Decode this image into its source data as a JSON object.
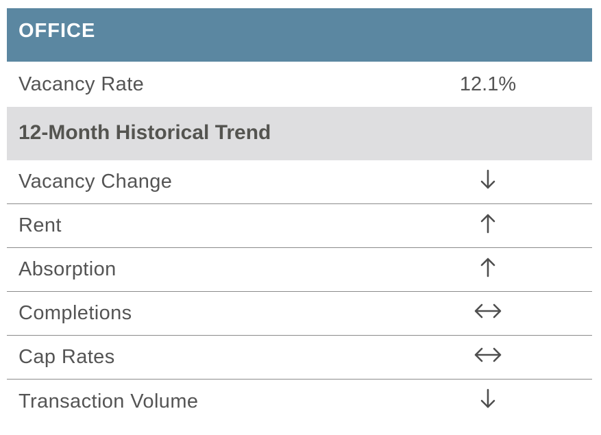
{
  "header": {
    "title": "OFFICE"
  },
  "vacancy": {
    "label": "Vacancy Rate",
    "value": "12.1%"
  },
  "trend_section": {
    "title": "12-Month Historical Trend",
    "rows": [
      {
        "label": "Vacancy Change",
        "trend": "down",
        "icon": "arrow-down-icon"
      },
      {
        "label": "Rent",
        "trend": "up",
        "icon": "arrow-up-icon"
      },
      {
        "label": "Absorption",
        "trend": "up",
        "icon": "arrow-up-icon"
      },
      {
        "label": "Completions",
        "trend": "flat",
        "icon": "arrow-left-right-icon"
      },
      {
        "label": "Cap Rates",
        "trend": "flat",
        "icon": "arrow-left-right-icon"
      },
      {
        "label": "Transaction Volume",
        "trend": "down",
        "icon": "arrow-down-icon"
      }
    ]
  },
  "colors": {
    "header_bg": "#5b87a1",
    "subheader_bg": "#dedee0",
    "text": "#545454"
  }
}
